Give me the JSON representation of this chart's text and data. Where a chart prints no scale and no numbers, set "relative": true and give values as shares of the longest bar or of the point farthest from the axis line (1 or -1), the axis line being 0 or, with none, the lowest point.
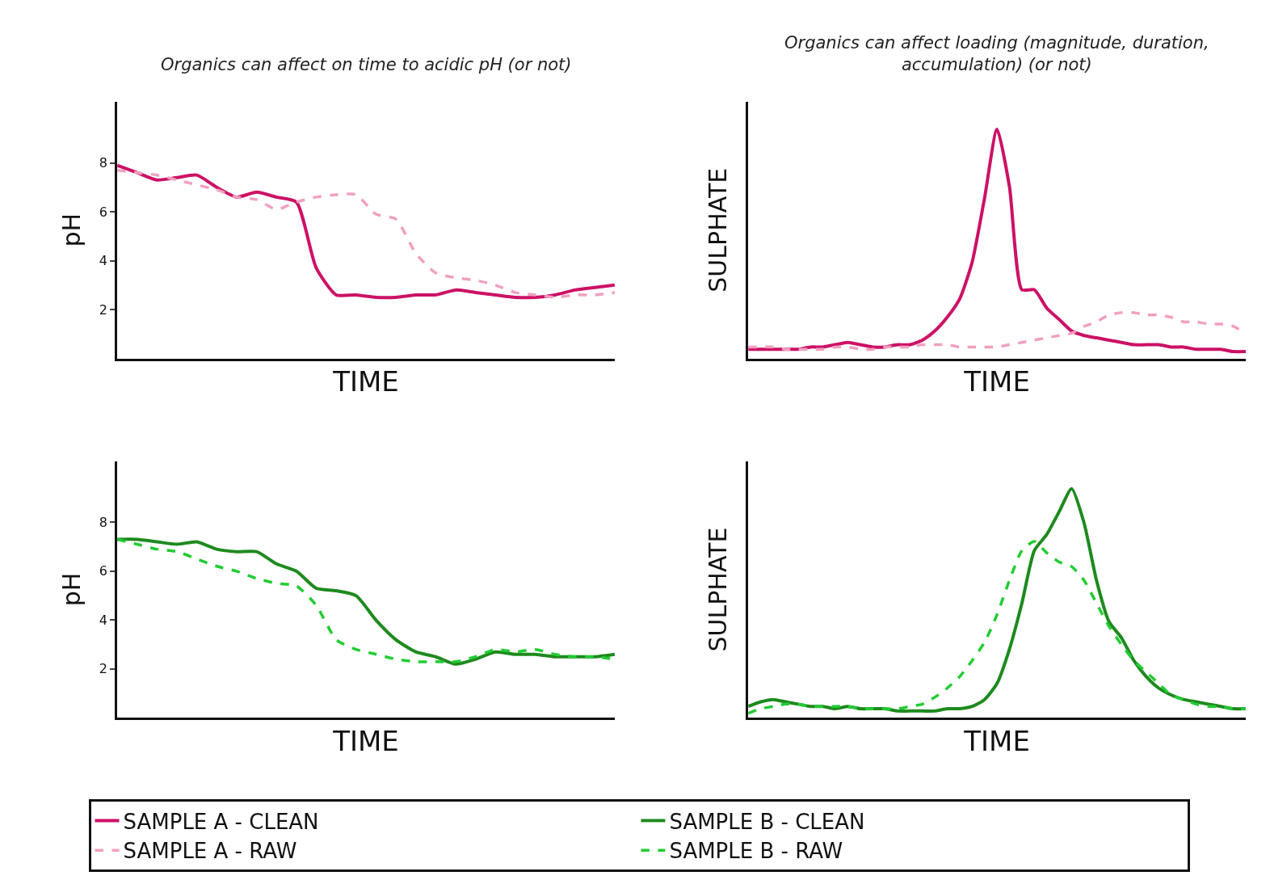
{
  "chart_data": [
    {
      "type": "line",
      "title": "Organics can affect on time to acidic pH (or not)",
      "xlabel": "TIME",
      "ylabel": "pH",
      "ylim": [
        0,
        10.5
      ],
      "yticks": [
        2,
        4,
        6,
        8
      ],
      "tick_labels": "y",
      "legend": "bottom",
      "categories": [
        null,
        null,
        null,
        null,
        null,
        null,
        null,
        null,
        null,
        null,
        null,
        null,
        null,
        null,
        null,
        null,
        null,
        null,
        null,
        null,
        null,
        null,
        null,
        null,
        null,
        null
      ],
      "series": [
        {
          "name": "SAMPLE A - CLEAN",
          "color": "#cc1166",
          "line_style": "solid",
          "values": [
            7.9,
            7.6,
            7.3,
            7.4,
            7.5,
            7.0,
            6.6,
            6.8,
            6.6,
            6.4,
            3.7,
            2.6,
            2.6,
            2.5,
            2.5,
            2.6,
            2.6,
            2.8,
            2.7,
            2.6,
            2.5,
            2.5,
            2.6,
            2.8,
            2.9,
            3.0
          ]
        },
        {
          "name": "SAMPLE A - RAW",
          "color": "#f0a0c0",
          "line_style": "dashed",
          "values": [
            7.7,
            7.6,
            7.5,
            7.3,
            7.1,
            6.9,
            6.6,
            6.5,
            6.1,
            6.4,
            6.6,
            6.7,
            6.7,
            5.9,
            5.7,
            4.3,
            3.5,
            3.3,
            3.2,
            3.0,
            2.7,
            2.6,
            2.5,
            2.6,
            2.6,
            2.7
          ]
        }
      ]
    },
    {
      "type": "line",
      "title": "Organics can affect loading (magnitude, duration, accumulation) (or not)",
      "xlabel": "TIME",
      "ylabel": "SULPHATE",
      "relative": true,
      "tick_labels": false,
      "legend": "bottom",
      "categories": [
        null,
        null,
        null,
        null,
        null,
        null,
        null,
        null,
        null,
        null,
        null,
        null,
        null,
        null,
        null,
        null,
        null,
        null,
        null,
        null,
        null,
        null,
        null,
        null,
        null,
        null,
        null,
        null,
        null,
        null,
        null,
        null,
        null,
        null,
        null,
        null,
        null,
        null,
        null,
        null,
        null
      ],
      "series": [
        {
          "name": "SAMPLE A - CLEAN",
          "color": "#cc1166",
          "line_style": "solid",
          "values": [
            0.04,
            0.04,
            0.04,
            0.04,
            0.04,
            0.05,
            0.05,
            0.06,
            0.07,
            0.06,
            0.05,
            0.05,
            0.06,
            0.06,
            0.08,
            0.12,
            0.18,
            0.26,
            0.42,
            0.7,
            1.0,
            0.75,
            0.3,
            0.3,
            0.22,
            0.17,
            0.12,
            0.1,
            0.09,
            0.08,
            0.07,
            0.06,
            0.06,
            0.06,
            0.05,
            0.05,
            0.04,
            0.04,
            0.04,
            0.03,
            0.03
          ]
        },
        {
          "name": "SAMPLE A - RAW",
          "color": "#f0a0c0",
          "line_style": "dashed",
          "values": [
            0.05,
            0.05,
            0.05,
            0.04,
            0.04,
            0.04,
            0.04,
            0.05,
            0.05,
            0.04,
            0.04,
            0.05,
            0.05,
            0.05,
            0.06,
            0.06,
            0.06,
            0.05,
            0.05,
            0.05,
            0.05,
            0.06,
            0.07,
            0.08,
            0.09,
            0.1,
            0.11,
            0.14,
            0.16,
            0.19,
            0.2,
            0.2,
            0.19,
            0.19,
            0.18,
            0.16,
            0.16,
            0.15,
            0.15,
            0.14,
            0.11
          ]
        }
      ]
    },
    {
      "type": "line",
      "xlabel": "TIME",
      "ylabel": "pH",
      "ylim": [
        0,
        10.5
      ],
      "yticks": [
        2,
        4,
        6,
        8
      ],
      "tick_labels": "y",
      "legend": "bottom",
      "categories": [
        null,
        null,
        null,
        null,
        null,
        null,
        null,
        null,
        null,
        null,
        null,
        null,
        null,
        null,
        null,
        null,
        null,
        null,
        null,
        null,
        null,
        null,
        null,
        null,
        null,
        null
      ],
      "series": [
        {
          "name": "SAMPLE B - CLEAN",
          "color": "#1e8a1e",
          "line_style": "solid",
          "values": [
            7.3,
            7.3,
            7.2,
            7.1,
            7.2,
            6.9,
            6.8,
            6.8,
            6.3,
            6.0,
            5.3,
            5.2,
            5.0,
            4.0,
            3.2,
            2.7,
            2.5,
            2.2,
            2.4,
            2.7,
            2.6,
            2.6,
            2.5,
            2.5,
            2.5,
            2.6
          ]
        },
        {
          "name": "SAMPLE B - RAW",
          "color": "#22cc33",
          "line_style": "dashed",
          "values": [
            7.3,
            7.1,
            6.9,
            6.8,
            6.5,
            6.2,
            6.0,
            5.7,
            5.5,
            5.4,
            4.6,
            3.2,
            2.8,
            2.6,
            2.4,
            2.3,
            2.3,
            2.3,
            2.5,
            2.8,
            2.7,
            2.8,
            2.6,
            2.5,
            2.5,
            2.4
          ]
        }
      ]
    },
    {
      "type": "line",
      "xlabel": "TIME",
      "ylabel": "SULPHATE",
      "relative": true,
      "tick_labels": false,
      "legend": "bottom",
      "categories": [
        null,
        null,
        null,
        null,
        null,
        null,
        null,
        null,
        null,
        null,
        null,
        null,
        null,
        null,
        null,
        null,
        null,
        null,
        null,
        null,
        null,
        null,
        null,
        null,
        null,
        null,
        null,
        null,
        null,
        null,
        null,
        null,
        null,
        null,
        null,
        null,
        null,
        null,
        null,
        null,
        null
      ],
      "series": [
        {
          "name": "SAMPLE B - CLEAN",
          "color": "#1e8a1e",
          "line_style": "solid",
          "values": [
            0.05,
            0.07,
            0.08,
            0.07,
            0.06,
            0.05,
            0.05,
            0.04,
            0.05,
            0.04,
            0.04,
            0.04,
            0.03,
            0.03,
            0.03,
            0.03,
            0.04,
            0.04,
            0.05,
            0.08,
            0.15,
            0.3,
            0.5,
            0.73,
            0.8,
            0.9,
            1.0,
            0.85,
            0.6,
            0.42,
            0.35,
            0.25,
            0.18,
            0.13,
            0.1,
            0.08,
            0.07,
            0.06,
            0.05,
            0.04,
            0.04
          ]
        },
        {
          "name": "SAMPLE B - RAW",
          "color": "#22cc33",
          "line_style": "dashed",
          "values": [
            0.02,
            0.04,
            0.05,
            0.06,
            0.06,
            0.05,
            0.05,
            0.05,
            0.05,
            0.04,
            0.04,
            0.04,
            0.04,
            0.05,
            0.06,
            0.09,
            0.13,
            0.18,
            0.25,
            0.33,
            0.45,
            0.6,
            0.73,
            0.77,
            0.72,
            0.68,
            0.66,
            0.6,
            0.5,
            0.4,
            0.32,
            0.25,
            0.2,
            0.15,
            0.1,
            0.08,
            0.06,
            0.05,
            0.05,
            0.04,
            0.04
          ]
        }
      ]
    }
  ]
}
